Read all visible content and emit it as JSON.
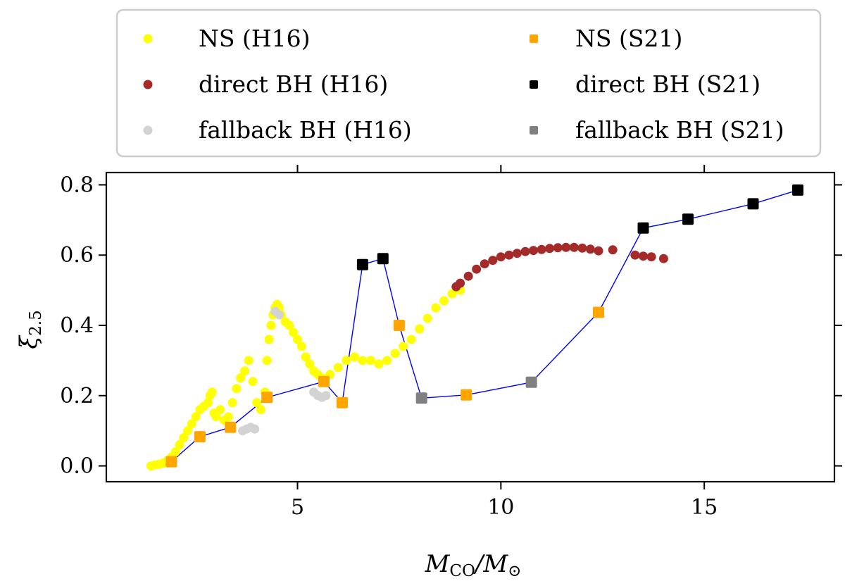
{
  "chart_data": {
    "type": "scatter",
    "title": "",
    "xlabel": "M_CO/M_⊙",
    "ylabel": "ξ_2.5",
    "xlim": [
      0.3,
      18.2
    ],
    "ylim": [
      -0.045,
      0.835
    ],
    "xticks": [
      5,
      10,
      15
    ],
    "yticks": [
      0.0,
      0.2,
      0.4,
      0.6,
      0.8
    ],
    "xtick_labels": [
      "5",
      "10",
      "15"
    ],
    "ytick_labels": [
      "0.0",
      "0.2",
      "0.4",
      "0.6",
      "0.8"
    ],
    "legend": {
      "position": "above",
      "entries": [
        {
          "label": "NS (H16)",
          "marker": "circle",
          "color": "#ffff00"
        },
        {
          "label": "NS (S21)",
          "marker": "square",
          "color": "#ffa500"
        },
        {
          "label": "direct BH (H16)",
          "marker": "circle",
          "color": "#a52a2a"
        },
        {
          "label": "direct BH (S21)",
          "marker": "square",
          "color": "#000000"
        },
        {
          "label": "fallback BH (H16)",
          "marker": "circle",
          "color": "#d3d3d3"
        },
        {
          "label": "fallback BH (S21)",
          "marker": "square",
          "color": "#808080"
        }
      ]
    },
    "series": [
      {
        "name": "NS (H16)",
        "marker": "circle",
        "color": "#ffff00",
        "points": [
          [
            1.4,
            0.0
          ],
          [
            1.5,
            0.003
          ],
          [
            1.6,
            0.005
          ],
          [
            1.7,
            0.008
          ],
          [
            1.8,
            0.015
          ],
          [
            1.9,
            0.025
          ],
          [
            2.0,
            0.04
          ],
          [
            2.1,
            0.06
          ],
          [
            2.2,
            0.08
          ],
          [
            2.3,
            0.1
          ],
          [
            2.4,
            0.12
          ],
          [
            2.5,
            0.14
          ],
          [
            2.6,
            0.16
          ],
          [
            2.7,
            0.17
          ],
          [
            2.8,
            0.18
          ],
          [
            2.85,
            0.2
          ],
          [
            2.9,
            0.21
          ],
          [
            2.95,
            0.15
          ],
          [
            3.0,
            0.14
          ],
          [
            3.1,
            0.16
          ],
          [
            3.2,
            0.13
          ],
          [
            3.3,
            0.14
          ],
          [
            3.4,
            0.18
          ],
          [
            3.5,
            0.22
          ],
          [
            3.6,
            0.25
          ],
          [
            3.7,
            0.27
          ],
          [
            3.8,
            0.3
          ],
          [
            3.9,
            0.24
          ],
          [
            4.0,
            0.18
          ],
          [
            4.1,
            0.16
          ],
          [
            4.2,
            0.21
          ],
          [
            4.25,
            0.3
          ],
          [
            4.3,
            0.36
          ],
          [
            4.35,
            0.4
          ],
          [
            4.4,
            0.43
          ],
          [
            4.45,
            0.45
          ],
          [
            4.5,
            0.46
          ],
          [
            4.55,
            0.45
          ],
          [
            4.6,
            0.43
          ],
          [
            4.7,
            0.41
          ],
          [
            4.8,
            0.4
          ],
          [
            4.9,
            0.38
          ],
          [
            5.0,
            0.36
          ],
          [
            5.1,
            0.34
          ],
          [
            5.2,
            0.31
          ],
          [
            5.3,
            0.29
          ],
          [
            5.4,
            0.27
          ],
          [
            5.5,
            0.26
          ],
          [
            5.6,
            0.25
          ],
          [
            5.8,
            0.26
          ],
          [
            6.0,
            0.28
          ],
          [
            6.2,
            0.3
          ],
          [
            6.4,
            0.31
          ],
          [
            6.6,
            0.3
          ],
          [
            6.8,
            0.3
          ],
          [
            7.0,
            0.29
          ],
          [
            7.2,
            0.3
          ],
          [
            7.4,
            0.32
          ],
          [
            7.6,
            0.34
          ],
          [
            7.8,
            0.36
          ],
          [
            8.0,
            0.39
          ],
          [
            8.2,
            0.42
          ],
          [
            8.4,
            0.45
          ],
          [
            8.6,
            0.47
          ],
          [
            8.8,
            0.49
          ],
          [
            9.0,
            0.5
          ]
        ]
      },
      {
        "name": "direct BH (H16)",
        "marker": "circle",
        "color": "#a52a2a",
        "points": [
          [
            8.9,
            0.51
          ],
          [
            9.0,
            0.52
          ],
          [
            9.2,
            0.54
          ],
          [
            9.4,
            0.56
          ],
          [
            9.6,
            0.575
          ],
          [
            9.8,
            0.585
          ],
          [
            10.0,
            0.595
          ],
          [
            10.2,
            0.6
          ],
          [
            10.4,
            0.605
          ],
          [
            10.6,
            0.61
          ],
          [
            10.8,
            0.613
          ],
          [
            11.0,
            0.616
          ],
          [
            11.2,
            0.619
          ],
          [
            11.4,
            0.621
          ],
          [
            11.6,
            0.622
          ],
          [
            11.8,
            0.622
          ],
          [
            12.0,
            0.62
          ],
          [
            12.2,
            0.617
          ],
          [
            12.4,
            0.612
          ],
          [
            12.75,
            0.615
          ],
          [
            13.3,
            0.6
          ],
          [
            13.5,
            0.597
          ],
          [
            13.7,
            0.595
          ],
          [
            14.0,
            0.59
          ]
        ]
      },
      {
        "name": "fallback BH (H16)",
        "marker": "circle",
        "color": "#d3d3d3",
        "points": [
          [
            3.65,
            0.1
          ],
          [
            3.75,
            0.105
          ],
          [
            3.85,
            0.11
          ],
          [
            3.95,
            0.105
          ],
          [
            4.45,
            0.44
          ],
          [
            4.55,
            0.43
          ],
          [
            5.4,
            0.21
          ],
          [
            5.5,
            0.2
          ],
          [
            5.6,
            0.195
          ],
          [
            5.7,
            0.2
          ]
        ]
      },
      {
        "name": "NS (S21)",
        "marker": "square",
        "color": "#ffa500",
        "points": [
          [
            1.9,
            0.012
          ],
          [
            2.6,
            0.083
          ],
          [
            3.35,
            0.11
          ],
          [
            4.25,
            0.195
          ],
          [
            5.65,
            0.24
          ],
          [
            6.1,
            0.18
          ],
          [
            7.5,
            0.4
          ],
          [
            9.15,
            0.202
          ],
          [
            12.4,
            0.437
          ]
        ]
      },
      {
        "name": "direct BH (S21)",
        "marker": "square",
        "color": "#000000",
        "points": [
          [
            6.6,
            0.573
          ],
          [
            7.1,
            0.59
          ],
          [
            13.5,
            0.677
          ],
          [
            14.6,
            0.702
          ],
          [
            16.2,
            0.746
          ],
          [
            17.3,
            0.785
          ]
        ]
      },
      {
        "name": "fallback BH (S21)",
        "marker": "square",
        "color": "#808080",
        "points": [
          [
            8.05,
            0.193
          ],
          [
            10.75,
            0.238
          ]
        ]
      }
    ],
    "connecting_line": {
      "color": "#0000ff",
      "points": [
        [
          1.9,
          0.012
        ],
        [
          2.6,
          0.083
        ],
        [
          3.35,
          0.11
        ],
        [
          4.25,
          0.195
        ],
        [
          5.65,
          0.24
        ],
        [
          6.1,
          0.18
        ],
        [
          6.6,
          0.573
        ],
        [
          7.1,
          0.59
        ],
        [
          7.5,
          0.4
        ],
        [
          8.05,
          0.193
        ],
        [
          9.15,
          0.202
        ],
        [
          10.75,
          0.238
        ],
        [
          12.4,
          0.437
        ],
        [
          13.5,
          0.677
        ],
        [
          14.6,
          0.702
        ],
        [
          16.2,
          0.746
        ],
        [
          17.3,
          0.785
        ]
      ]
    }
  }
}
